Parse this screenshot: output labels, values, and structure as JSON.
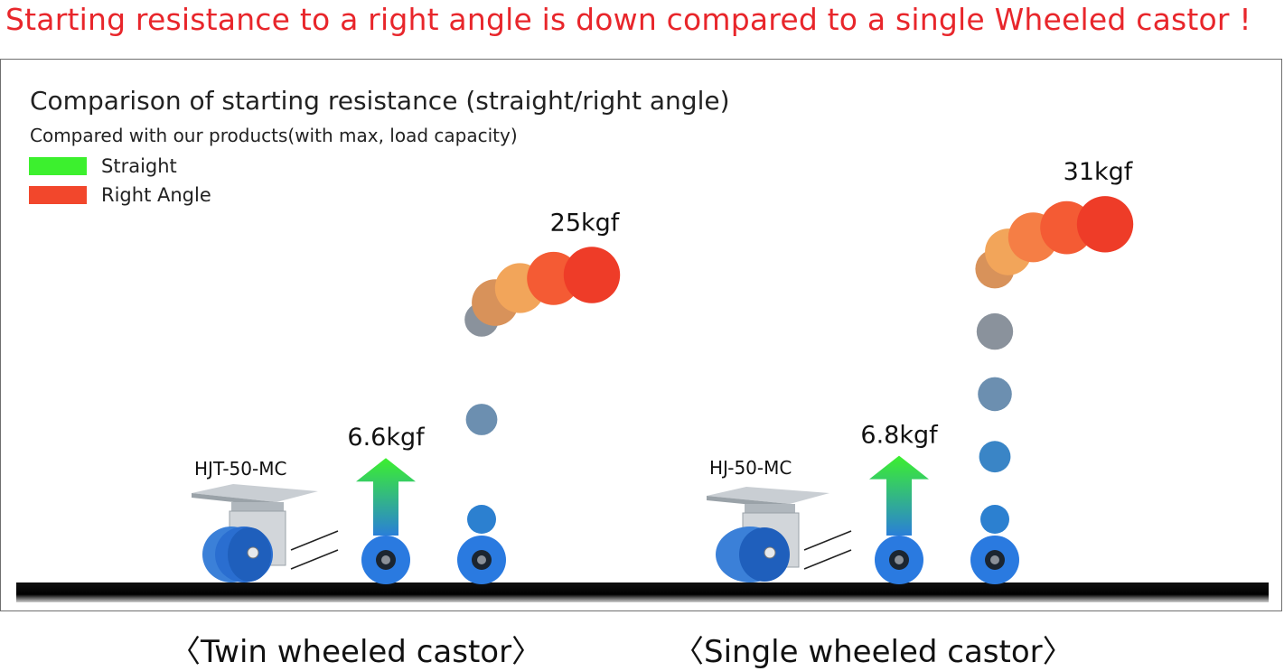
{
  "headline": "Starting resistance to a right angle is down compared to a single Wheeled castor !",
  "chart_data": {
    "type": "bar",
    "title": "Comparison of starting resistance (straight/right angle)",
    "subtitle": "Compared with our products(with max, load capacity)",
    "legend": [
      {
        "label": "Straight",
        "color": "#3cf02e"
      },
      {
        "label": "Right Angle",
        "color": "#f2472c"
      }
    ],
    "series": [
      {
        "name": "Straight",
        "values": [
          6.6,
          6.8
        ],
        "labels": [
          "6.6kgf",
          "6.8kgf"
        ]
      },
      {
        "name": "Right Angle",
        "values": [
          25,
          31
        ],
        "labels": [
          "25kgf",
          "31kgf"
        ]
      }
    ],
    "categories": [
      "〈Twin wheeled castor〉",
      "〈Single wheeled castor〉"
    ],
    "models": [
      "HJT-50-MC",
      "HJ-50-MC"
    ],
    "unit": "kgf"
  }
}
